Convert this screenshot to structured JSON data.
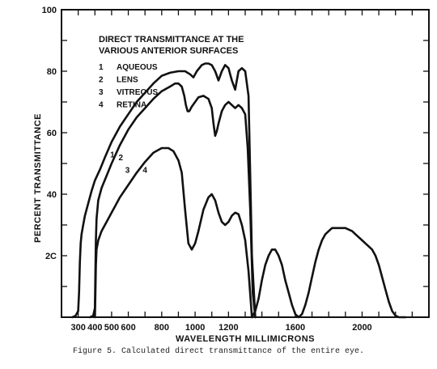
{
  "caption": "Figure 5.  Calculated direct transmittance of the entire eye.",
  "chart_data": {
    "type": "line",
    "xlabel": "WAVELENGTH  MILLIMICRONS",
    "ylabel": "PERCENT  TRANSMITTANCE",
    "xlim": [
      200,
      2400
    ],
    "ylim": [
      0,
      100
    ],
    "x_ticks": [
      300,
      400,
      500,
      600,
      700,
      800,
      900,
      1000,
      1100,
      1200,
      1300,
      1400,
      1500,
      1600,
      1700,
      1800,
      1900,
      2000,
      2100,
      2200,
      2300
    ],
    "x_tick_labels": [
      {
        "value": 300,
        "label": "300"
      },
      {
        "value": 400,
        "label": "400"
      },
      {
        "value": 500,
        "label": "500"
      },
      {
        "value": 600,
        "label": "600"
      },
      {
        "value": 800,
        "label": "800"
      },
      {
        "value": 1000,
        "label": "1000"
      },
      {
        "value": 1200,
        "label": "1200"
      },
      {
        "value": 1600,
        "label": "1600"
      },
      {
        "value": 2000,
        "label": "2000"
      }
    ],
    "y_ticks": [
      10,
      20,
      30,
      40,
      50,
      60,
      70,
      80,
      90
    ],
    "y_tick_labels": [
      {
        "value": 20,
        "label": "2C"
      },
      {
        "value": 40,
        "label": "40"
      },
      {
        "value": 60,
        "label": "60"
      },
      {
        "value": 80,
        "label": "80"
      },
      {
        "value": 100,
        "label": "100"
      }
    ],
    "legend_placement": "top-left",
    "legend_title": [
      "DIRECT TRANSMITTANCE AT THE",
      "VARIOUS ANTERIOR SURFACES"
    ],
    "legend": [
      {
        "key": "1",
        "label": "AQUEOUS"
      },
      {
        "key": "2",
        "label": "LENS"
      },
      {
        "key": "3",
        "label": "VITREOUS"
      },
      {
        "key": "4",
        "label": "RETINA"
      }
    ],
    "series": [
      {
        "name": "1",
        "label_at": [
          505,
          52
        ],
        "x": [
          265,
          285,
          300,
          305,
          310,
          315,
          320,
          330,
          340,
          360,
          380,
          400,
          430,
          460,
          500,
          550,
          600,
          650,
          700,
          750,
          800,
          850,
          900,
          940,
          970,
          990,
          1010,
          1040,
          1060,
          1080,
          1100,
          1120,
          1140,
          1160,
          1180,
          1200,
          1210,
          1220,
          1240,
          1260,
          1280,
          1300,
          1320,
          1340,
          1360
        ],
        "y": [
          0,
          0.5,
          2,
          8,
          18,
          24,
          27,
          30,
          33,
          37,
          41,
          44.5,
          48,
          52,
          57,
          62,
          66,
          70,
          73,
          76,
          78.5,
          79.5,
          80,
          80,
          79,
          78,
          80,
          82,
          82.5,
          82.5,
          82,
          80,
          77,
          80,
          82,
          81,
          79,
          77,
          74,
          80,
          81,
          80,
          72,
          20,
          0
        ]
      },
      {
        "name": "2",
        "label_at": [
          555,
          51
        ],
        "x": [
          370,
          390,
          400,
          403,
          406,
          410,
          420,
          440,
          470,
          500,
          550,
          600,
          650,
          700,
          750,
          800,
          850,
          880,
          900,
          920,
          935,
          945,
          955,
          965,
          980,
          1000,
          1020,
          1050,
          1080,
          1100,
          1110,
          1120,
          1130,
          1140,
          1160,
          1180,
          1200,
          1220,
          1240,
          1260,
          1280,
          1300,
          1315,
          1330,
          1345,
          1360
        ],
        "y": [
          0,
          0.5,
          3,
          15,
          25,
          32,
          38,
          42,
          46,
          50,
          56,
          61,
          65,
          68,
          71,
          73.5,
          75,
          76,
          76,
          75,
          72,
          69,
          67,
          67,
          68.5,
          70,
          71.5,
          72,
          71,
          68,
          63,
          59,
          60.5,
          63,
          67,
          69,
          70,
          69,
          68,
          69,
          68,
          66,
          55,
          35,
          8,
          0
        ]
      },
      {
        "name": "3",
        "label_at": [
          595,
          47
        ],
        "x": [
          1340,
          1360,
          1380,
          1400,
          1420,
          1440,
          1460,
          1480,
          1500,
          1520,
          1540,
          1560,
          1580,
          1600,
          1620,
          1640,
          1660,
          1680,
          1700,
          1720,
          1740,
          1760,
          1780,
          1800,
          1820,
          1840,
          1860,
          1880,
          1900,
          1920,
          1940,
          1960,
          1980,
          2000,
          2020,
          2040,
          2060,
          2080,
          2100,
          2120,
          2140,
          2160,
          2180,
          2200,
          2220,
          2240,
          2260
        ],
        "y": [
          0,
          2,
          6,
          12,
          17,
          20,
          22,
          22,
          20,
          17,
          12,
          8,
          4,
          1,
          0,
          1,
          4,
          8,
          13,
          18,
          22,
          25,
          27,
          28,
          29,
          29,
          29,
          29,
          29,
          28.5,
          28,
          27,
          26,
          25,
          24,
          23,
          22,
          20,
          17,
          13,
          9,
          5,
          2,
          0.5,
          0,
          0,
          0
        ]
      },
      {
        "name": "4",
        "label_at": [
          700,
          47
        ],
        "x": [
          400,
          403,
          406,
          410,
          420,
          440,
          470,
          500,
          550,
          600,
          650,
          700,
          750,
          800,
          840,
          870,
          900,
          920,
          940,
          960,
          980,
          1000,
          1020,
          1050,
          1080,
          1100,
          1120,
          1140,
          1160,
          1180,
          1200,
          1220,
          1240,
          1260,
          1280,
          1300,
          1320,
          1340
        ],
        "y": [
          0,
          8,
          17,
          22,
          25,
          28,
          31,
          34,
          39,
          43,
          47,
          50.5,
          53.5,
          55,
          55,
          54,
          51,
          47,
          35,
          24,
          22,
          24,
          28,
          35,
          39,
          40,
          38,
          34,
          31,
          30,
          31,
          33,
          34,
          33.5,
          30,
          25,
          15,
          0
        ]
      }
    ]
  }
}
